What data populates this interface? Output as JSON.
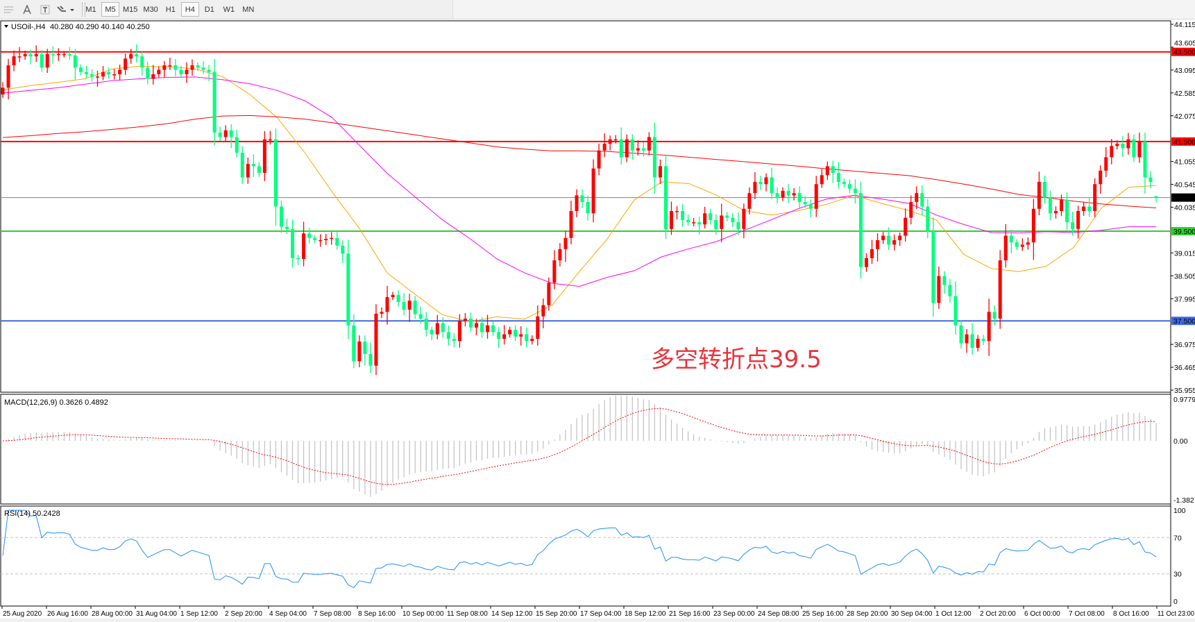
{
  "toolbar": {
    "icons": [
      "period-separator-icon",
      "text-icon",
      "text-label-icon",
      "arrows-icon"
    ],
    "timeframes": [
      {
        "label": "M1",
        "boxed": false
      },
      {
        "label": "M5",
        "boxed": true
      },
      {
        "label": "M15",
        "boxed": false
      },
      {
        "label": "M30",
        "boxed": false
      },
      {
        "label": "H1",
        "boxed": false
      },
      {
        "label": "H4",
        "boxed": true,
        "active": true
      },
      {
        "label": "D1",
        "boxed": false
      },
      {
        "label": "W1",
        "boxed": false
      },
      {
        "label": "MN",
        "boxed": false
      }
    ]
  },
  "chart_header": {
    "symbol_tf": "USOil-,H4",
    "ohlc": "40.280 40.290 40.140 40.250"
  },
  "annotation": "多空转折点39.5",
  "chart_data": [
    {
      "type": "candlestick",
      "symbol": "USOil-",
      "timeframe": "H4",
      "last_ohlc": {
        "open": 40.28,
        "high": 40.29,
        "low": 40.14,
        "close": 40.25
      },
      "first_open": 42.55,
      "closes": [
        42.7,
        43.2,
        43.4,
        43.4,
        43.45,
        43.4,
        43.45,
        43.15,
        43.45,
        43.43,
        43.45,
        43.45,
        43.42,
        43.15,
        43.05,
        43.0,
        42.95,
        42.95,
        43.05,
        43.0,
        43.0,
        43.1,
        43.35,
        43.45,
        43.4,
        43.15,
        42.9,
        43.0,
        43.1,
        43.2,
        43.2,
        43.1,
        43.0,
        43.1,
        43.2,
        43.15,
        43.1,
        43.05,
        41.7,
        41.6,
        41.75,
        41.6,
        41.25,
        40.7,
        41.0,
        40.95,
        40.8,
        41.55,
        41.55,
        40.05,
        39.6,
        39.55,
        38.9,
        38.88,
        39.45,
        39.35,
        39.3,
        39.3,
        39.33,
        39.35,
        39.18,
        39.0,
        37.4,
        36.6,
        37.04,
        36.76,
        36.5,
        37.66,
        37.7,
        38.03,
        38.08,
        37.92,
        37.75,
        37.95,
        37.65,
        37.55,
        37.3,
        37.2,
        37.45,
        37.25,
        37.1,
        37.05,
        37.5,
        37.55,
        37.35,
        37.45,
        37.25,
        37.4,
        37.25,
        37.1,
        37.2,
        37.3,
        37.15,
        37.2,
        37.05,
        37.1,
        37.6,
        37.85,
        38.35,
        38.85,
        39.1,
        39.35,
        39.95,
        40.3,
        40.15,
        39.9,
        40.9,
        41.3,
        41.45,
        41.55,
        41.55,
        41.15,
        41.55,
        41.3,
        41.35,
        41.3,
        41.6,
        40.7,
        40.95,
        39.55,
        39.95,
        39.95,
        39.75,
        39.7,
        39.7,
        39.65,
        39.9,
        39.75,
        39.55,
        39.85,
        39.8,
        39.7,
        39.55,
        40.0,
        40.35,
        40.6,
        40.55,
        40.7,
        40.35,
        40.25,
        40.4,
        40.3,
        40.35,
        40.15,
        40.1,
        40.0,
        40.55,
        40.75,
        40.95,
        40.8,
        40.6,
        40.55,
        40.45,
        40.35,
        38.7,
        38.9,
        39.1,
        39.3,
        39.4,
        39.2,
        39.3,
        39.4,
        39.8,
        40.15,
        40.35,
        40.05,
        39.5,
        37.9,
        38.5,
        38.3,
        38.05,
        37.4,
        37.0,
        37.2,
        36.9,
        37.1,
        37.05,
        37.7,
        37.55,
        38.85,
        39.4,
        39.25,
        39.15,
        39.2,
        39.25,
        40.0,
        40.6,
        40.25,
        39.9,
        39.95,
        40.2,
        39.7,
        39.55,
        39.95,
        40.05,
        39.95,
        40.55,
        40.85,
        41.15,
        41.4,
        41.45,
        41.35,
        41.55,
        41.15,
        41.5,
        40.7,
        40.6,
        40.25
      ],
      "up_color": "#ff0000",
      "down_color": "#00ff7f",
      "moving_averages": [
        {
          "color": "#ffa500",
          "values": [
            42.65,
            42.75,
            42.82,
            42.9,
            43.12,
            43.18,
            43.17,
            43.12,
            42.95,
            42.55,
            42.03,
            41.25,
            40.37,
            39.55,
            38.57,
            38.1,
            37.64,
            37.48,
            37.59,
            37.54,
            37.85,
            38.6,
            39.32,
            40.2,
            40.6,
            40.56,
            40.3,
            39.96,
            39.86,
            39.96,
            40.1,
            40.3,
            40.12,
            39.96,
            39.75,
            38.98,
            38.67,
            38.6,
            38.72,
            39.14,
            40.01,
            40.48,
            40.52
          ]
        },
        {
          "color": "#ff00ff",
          "values": [
            42.58,
            42.64,
            42.7,
            42.78,
            42.86,
            42.9,
            42.93,
            42.94,
            42.88,
            42.79,
            42.64,
            42.41,
            42.03,
            41.41,
            40.79,
            40.27,
            39.76,
            39.34,
            38.88,
            38.57,
            38.34,
            38.27,
            38.47,
            38.62,
            38.93,
            39.11,
            39.27,
            39.52,
            39.76,
            40.01,
            40.22,
            40.3,
            40.22,
            40.12,
            39.86,
            39.65,
            39.47,
            39.46,
            39.49,
            39.47,
            39.52,
            39.6,
            39.6
          ]
        },
        {
          "color": "#ff0000",
          "values": [
            41.59,
            41.63,
            41.68,
            41.72,
            41.77,
            41.83,
            41.9,
            42.0,
            42.07,
            42.08,
            42.05,
            42.0,
            41.92,
            41.83,
            41.74,
            41.65,
            41.56,
            41.47,
            41.38,
            41.33,
            41.29,
            41.29,
            41.28,
            41.24,
            41.2,
            41.15,
            41.1,
            41.05,
            41.0,
            40.95,
            40.89,
            40.84,
            40.79,
            40.74,
            40.65,
            40.55,
            40.44,
            40.32,
            40.25,
            40.17,
            40.11,
            40.06,
            40.02
          ]
        }
      ],
      "horizontal_lines": [
        {
          "value": 43.5,
          "label": "43.500",
          "color": "#ff0000"
        },
        {
          "value": 41.5,
          "label": "41.500",
          "color": "#ff0000"
        },
        {
          "value": 39.5,
          "label": "39.500",
          "color": "#32cd32"
        },
        {
          "value": 37.5,
          "label": "37.500",
          "color": "#4169e1"
        }
      ],
      "bid_line": {
        "value": 40.25,
        "label": "40.250",
        "color": "#808080"
      },
      "ylim": [
        35.955,
        44.115
      ],
      "y_ticks": [
        "44.115",
        "43.605",
        "43.095",
        "42.585",
        "42.075",
        "41.055",
        "40.545",
        "40.035",
        "39.015",
        "38.505",
        "37.995",
        "36.975",
        "36.465",
        "35.955"
      ]
    },
    {
      "type": "bar+line",
      "title": "MACD(12,26,9) 0.3626 0.4892",
      "params": [
        12,
        26,
        9
      ],
      "main": 0.3626,
      "signal": 0.4892,
      "histogram_color": "#c0c0c0",
      "signal_color": "#ff0000",
      "ylim": [
        -1.382,
        0.9779
      ],
      "y_ticks": [
        "0.9779",
        "0.00",
        "-1.382"
      ]
    },
    {
      "type": "line",
      "title": "RSI(14) 50.2428",
      "period": 14,
      "value": 50.2428,
      "color": "#1e90ff",
      "levels": [
        70,
        30
      ],
      "ylim": [
        0,
        100
      ],
      "y_ticks": [
        "100",
        "70",
        "30",
        "0"
      ]
    }
  ],
  "x_ticks": [
    "25 Aug 2020",
    "26 Aug 16:00",
    "28 Aug 00:00",
    "31 Aug 04:00",
    "1 Sep 12:00",
    "2 Sep 20:00",
    "4 Sep 04:00",
    "7 Sep 08:00",
    "8 Sep 16:00",
    "10 Sep 00:00",
    "11 Sep 08:00",
    "14 Sep 12:00",
    "15 Sep 20:00",
    "17 Sep 04:00",
    "18 Sep 12:00",
    "21 Sep 16:00",
    "23 Sep 00:00",
    "24 Sep 08:00",
    "25 Sep 16:00",
    "28 Sep 20:00",
    "30 Sep 04:00",
    "1 Oct 12:00",
    "2 Oct 20:00",
    "6 Oct 00:00",
    "7 Oct 08:00",
    "8 Oct 16:00",
    "11 Oct 23:00"
  ]
}
